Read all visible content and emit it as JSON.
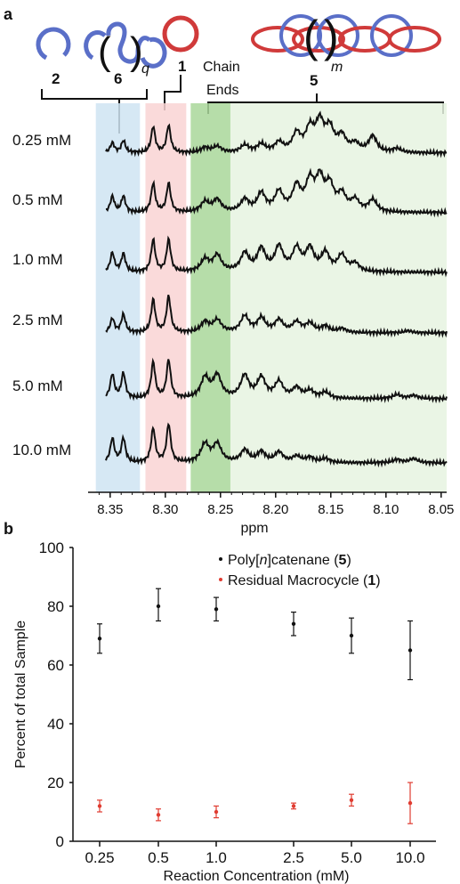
{
  "figure": {
    "panel_a_label": "a",
    "panel_b_label": "b"
  },
  "schematic": {
    "label_2": "2",
    "label_6": "6",
    "label_q": "q",
    "label_1": "1",
    "label_chain_ends_1": "Chain",
    "label_chain_ends_2": "Ends",
    "label_5": "5",
    "label_m": "m"
  },
  "colors": {
    "blue_ring": "#5a6fc8",
    "red_ring": "#d03a3a",
    "blue_region": "#cfe4f2",
    "pink_region": "#f9d3d3",
    "green_dark": "#a9d79a",
    "green_light": "#e6f3e1",
    "series_black": "#111111",
    "series_red": "#e03c31"
  },
  "chart_data": [
    {
      "type": "line",
      "xlabel": "ppm",
      "xlim": [
        8.37,
        8.045
      ],
      "x_ticks": [
        "8.35",
        "8.30",
        "8.25",
        "8.20",
        "8.15",
        "8.10",
        "8.05"
      ],
      "x_tick_values": [
        8.35,
        8.3,
        8.25,
        8.2,
        8.15,
        8.1,
        8.05
      ],
      "regions": [
        {
          "label": "2, 6",
          "from": 8.363,
          "to": 8.323,
          "color": "blue_region"
        },
        {
          "label": "1",
          "from": 8.318,
          "to": 8.281,
          "color": "pink_region"
        },
        {
          "label": "Chain Ends",
          "from": 8.277,
          "to": 8.241,
          "color": "green_dark"
        },
        {
          "label": "5",
          "from": 8.241,
          "to": 8.045,
          "color": "green_light"
        }
      ],
      "series": [
        {
          "name": "0.25 mM",
          "peaks": [
            [
              8.348,
              0.25
            ],
            [
              8.338,
              0.3
            ],
            [
              8.311,
              0.65
            ],
            [
              8.297,
              0.68
            ],
            [
              8.264,
              0.12
            ],
            [
              8.253,
              0.15
            ],
            [
              8.228,
              0.18
            ],
            [
              8.213,
              0.2
            ],
            [
              8.197,
              0.24
            ],
            [
              8.181,
              0.45
            ],
            [
              8.169,
              0.55
            ],
            [
              8.16,
              0.7
            ],
            [
              8.151,
              0.55
            ],
            [
              8.14,
              0.38
            ],
            [
              8.128,
              0.2
            ],
            [
              8.112,
              0.4
            ],
            [
              8.09,
              0.1
            ]
          ]
        },
        {
          "name": "0.5 mM",
          "peaks": [
            [
              8.348,
              0.4
            ],
            [
              8.338,
              0.4
            ],
            [
              8.311,
              0.72
            ],
            [
              8.297,
              0.72
            ],
            [
              8.264,
              0.25
            ],
            [
              8.253,
              0.3
            ],
            [
              8.228,
              0.3
            ],
            [
              8.213,
              0.45
            ],
            [
              8.197,
              0.48
            ],
            [
              8.181,
              0.6
            ],
            [
              8.169,
              0.7
            ],
            [
              8.16,
              0.75
            ],
            [
              8.151,
              0.6
            ],
            [
              8.14,
              0.4
            ],
            [
              8.128,
              0.28
            ],
            [
              8.112,
              0.3
            ]
          ]
        },
        {
          "name": "1.0 mM",
          "peaks": [
            [
              8.348,
              0.48
            ],
            [
              8.338,
              0.45
            ],
            [
              8.311,
              0.8
            ],
            [
              8.297,
              0.8
            ],
            [
              8.264,
              0.3
            ],
            [
              8.253,
              0.4
            ],
            [
              8.228,
              0.45
            ],
            [
              8.213,
              0.55
            ],
            [
              8.197,
              0.6
            ],
            [
              8.181,
              0.55
            ],
            [
              8.169,
              0.55
            ],
            [
              8.155,
              0.45
            ],
            [
              8.14,
              0.4
            ],
            [
              8.128,
              0.2
            ]
          ]
        },
        {
          "name": "2.5 mM",
          "peaks": [
            [
              8.348,
              0.35
            ],
            [
              8.338,
              0.45
            ],
            [
              8.311,
              0.82
            ],
            [
              8.297,
              0.9
            ],
            [
              8.264,
              0.25
            ],
            [
              8.253,
              0.3
            ],
            [
              8.228,
              0.4
            ],
            [
              8.213,
              0.35
            ],
            [
              8.197,
              0.3
            ],
            [
              8.181,
              0.25
            ],
            [
              8.169,
              0.22
            ],
            [
              8.155,
              0.15
            ],
            [
              8.14,
              0.1
            ],
            [
              8.08,
              0.05
            ]
          ]
        },
        {
          "name": "5.0 mM",
          "peaks": [
            [
              8.348,
              0.6
            ],
            [
              8.338,
              0.62
            ],
            [
              8.311,
              0.9
            ],
            [
              8.297,
              0.95
            ],
            [
              8.264,
              0.5
            ],
            [
              8.253,
              0.55
            ],
            [
              8.228,
              0.55
            ],
            [
              8.213,
              0.5
            ],
            [
              8.197,
              0.4
            ],
            [
              8.181,
              0.25
            ],
            [
              8.169,
              0.18
            ],
            [
              8.155,
              0.15
            ],
            [
              8.09,
              0.1
            ],
            [
              8.075,
              0.08
            ]
          ]
        },
        {
          "name": "10.0 mM",
          "peaks": [
            [
              8.348,
              0.6
            ],
            [
              8.338,
              0.6
            ],
            [
              8.311,
              0.85
            ],
            [
              8.297,
              0.95
            ],
            [
              8.264,
              0.45
            ],
            [
              8.253,
              0.45
            ],
            [
              8.228,
              0.3
            ],
            [
              8.213,
              0.25
            ],
            [
              8.197,
              0.25
            ],
            [
              8.181,
              0.15
            ],
            [
              8.169,
              0.12
            ],
            [
              8.155,
              0.1
            ],
            [
              8.09,
              0.08
            ],
            [
              8.075,
              0.1
            ]
          ]
        }
      ]
    },
    {
      "type": "scatter",
      "xlabel": "Reaction Concentration (mM)",
      "ylabel": "Percent of total Sample",
      "categories": [
        "0.25",
        "0.5",
        "1.0",
        "2.5",
        "5.0",
        "10.0"
      ],
      "ylim": [
        0,
        100
      ],
      "y_ticks": [
        "0",
        "20",
        "40",
        "60",
        "80",
        "100"
      ],
      "y_tick_values": [
        0,
        20,
        40,
        60,
        80,
        100
      ],
      "legend_position": "top-right",
      "series": [
        {
          "name_prefix": "Poly[",
          "name_italic": "n",
          "name_mid": "]catenane (",
          "name_bold": "5",
          "name_suffix": ")",
          "color": "series_black",
          "values": [
            69,
            80,
            79,
            74,
            70,
            65
          ],
          "err_low": [
            5,
            5,
            4,
            4,
            6,
            10
          ],
          "err_high": [
            5,
            6,
            4,
            4,
            6,
            10
          ]
        },
        {
          "name_prefix": "Residual Macrocycle (",
          "name_italic": "",
          "name_mid": "",
          "name_bold": "1",
          "name_suffix": ")",
          "color": "series_red",
          "values": [
            12,
            9,
            10,
            12,
            14,
            13
          ],
          "err_low": [
            2,
            2,
            2,
            1,
            2,
            7
          ],
          "err_high": [
            2,
            2,
            2,
            1,
            2,
            7
          ]
        }
      ]
    }
  ]
}
